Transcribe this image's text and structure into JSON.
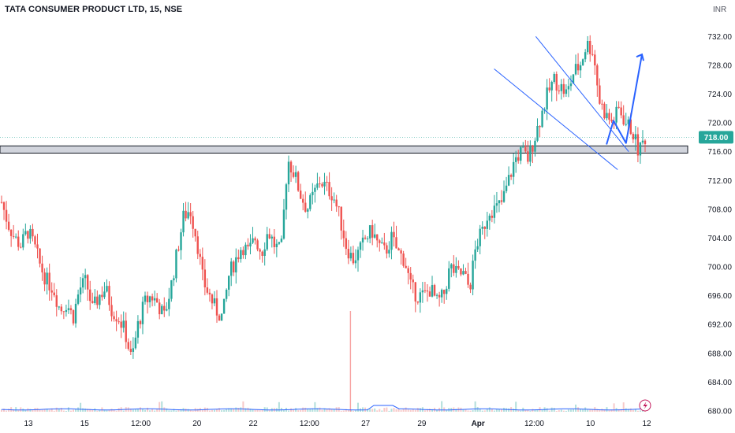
{
  "title": "TATA CONSUMER PRODUCT LTD, 15, NSE",
  "currency": "INR",
  "last_price_label": "718.00",
  "colors": {
    "up": "#26a69a",
    "down": "#ef5350",
    "last": "#26a69a",
    "zone": "#d1d4dc",
    "trend": "#2962ff",
    "volume_ma": "#2962ff"
  },
  "chart_data": {
    "type": "candlestick",
    "ylim": [
      680,
      734
    ],
    "y_ticks": [
      "732.00",
      "728.00",
      "724.00",
      "720.00",
      "716.00",
      "712.00",
      "708.00",
      "704.00",
      "700.00",
      "696.00",
      "692.00",
      "688.00",
      "684.00",
      "680.00"
    ],
    "x_ticks": [
      {
        "label": "13",
        "bold": false
      },
      {
        "label": "15",
        "bold": false
      },
      {
        "label": "12:00",
        "bold": false
      },
      {
        "label": "20",
        "bold": false
      },
      {
        "label": "22",
        "bold": false
      },
      {
        "label": "12:00",
        "bold": false
      },
      {
        "label": "27",
        "bold": false
      },
      {
        "label": "29",
        "bold": false
      },
      {
        "label": "Apr",
        "bold": true
      },
      {
        "label": "12:00",
        "bold": false
      },
      {
        "label": "10",
        "bold": false
      },
      {
        "label": "12",
        "bold": false
      }
    ],
    "price_path": [
      709,
      706,
      704,
      703,
      705,
      703,
      700,
      698,
      697,
      694,
      695,
      693,
      697,
      698,
      694,
      696,
      697,
      694,
      693,
      691,
      687,
      692,
      695,
      696,
      695,
      693,
      697,
      702,
      707,
      708,
      704,
      698,
      696,
      694,
      693,
      699,
      701,
      703,
      702,
      704,
      702,
      705,
      703,
      702,
      715,
      713,
      710,
      708,
      710,
      712,
      711,
      710,
      707,
      703,
      701,
      702,
      704,
      705,
      703,
      702,
      704,
      702,
      701,
      697,
      696,
      696,
      697,
      695,
      696,
      700,
      699,
      699,
      697,
      703,
      705,
      708,
      708,
      709,
      712,
      715,
      716,
      715,
      718,
      721,
      724,
      726,
      725,
      724,
      727,
      728,
      731,
      730,
      723,
      721,
      720,
      722,
      720,
      719,
      716,
      718
    ],
    "last_price": 718.0,
    "support_zone": [
      715.8,
      716.8
    ],
    "falling_channel": {
      "upper": [
        [
          0.772,
          732
        ],
        [
          0.906,
          716
        ]
      ],
      "lower": [
        [
          0.712,
          727.5
        ],
        [
          0.89,
          713.5
        ]
      ]
    },
    "projection": [
      [
        0.874,
        717
      ],
      [
        0.884,
        720.3
      ],
      [
        0.902,
        717.2
      ],
      [
        0.925,
        729.5
      ]
    ],
    "volume_spike_at": 0.505
  }
}
